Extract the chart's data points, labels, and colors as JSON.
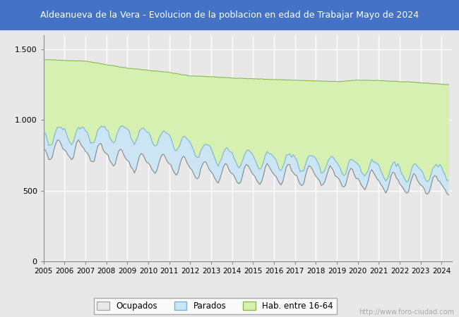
{
  "title": "Aldeanueva de la Vera - Evolucion de la poblacion en edad de Trabajar Mayo de 2024",
  "title_bg_color": "#4472c4",
  "title_text_color": "#ffffff",
  "ylim": [
    0,
    1600
  ],
  "yticks": [
    0,
    500,
    1000,
    1500
  ],
  "yticklabels": [
    "0",
    "500",
    "1.000",
    "1.500"
  ],
  "color_hab_fill": "#d6f0b2",
  "color_hab_line": "#8ab84a",
  "color_parados_fill": "#cce5f5",
  "color_parados_line": "#7ab4d4",
  "color_ocupados_line": "#888888",
  "watermark": "http://www.foro-ciudad.com",
  "legend_labels": [
    "Ocupados",
    "Parados",
    "Hab. entre 16-64"
  ],
  "legend_colors_fill": [
    "#e8e8e8",
    "#cce5f5",
    "#d6f0b2"
  ],
  "legend_colors_edge": [
    "#aaaaaa",
    "#7ab4d4",
    "#8ab84a"
  ],
  "background_color": "#e8e8e8",
  "plot_bg_color": "#e8e8e8",
  "grid_color": "#ffffff",
  "year_labels": [
    "2005",
    "2006",
    "2007",
    "2008",
    "2009",
    "2010",
    "2011",
    "2012",
    "2013",
    "2014",
    "2015",
    "2016",
    "2017",
    "2018",
    "2019",
    "2020",
    "2021",
    "2022",
    "2023",
    "2024"
  ],
  "hab_anchors_x": [
    2005,
    2006,
    2007,
    2008,
    2009,
    2010,
    2011,
    2012,
    2013,
    2014,
    2015,
    2016,
    2017,
    2018,
    2019,
    2020,
    2021,
    2022,
    2023,
    2024.42
  ],
  "hab_anchors_y": [
    1425,
    1420,
    1415,
    1390,
    1365,
    1350,
    1335,
    1310,
    1305,
    1295,
    1290,
    1285,
    1280,
    1275,
    1270,
    1280,
    1278,
    1270,
    1262,
    1248
  ],
  "parados_anchors_x": [
    2005,
    2006,
    2007,
    2008,
    2009,
    2010,
    2011,
    2012,
    2013,
    2014,
    2015,
    2016,
    2017,
    2018,
    2019,
    2020,
    2021,
    2022,
    2023,
    2024.42
  ],
  "parados_anchors_y": [
    100,
    110,
    120,
    150,
    200,
    200,
    175,
    155,
    135,
    120,
    110,
    100,
    95,
    90,
    85,
    90,
    85,
    85,
    85,
    100
  ],
  "ocupados_anchors_x": [
    2005,
    2006,
    2007,
    2008,
    2009,
    2010,
    2011,
    2012,
    2013,
    2014,
    2015,
    2016,
    2017,
    2018,
    2019,
    2020,
    2021,
    2022,
    2023,
    2024.42
  ],
  "ocupados_anchors_y": [
    790,
    790,
    780,
    760,
    710,
    690,
    690,
    660,
    630,
    620,
    615,
    615,
    610,
    605,
    600,
    580,
    565,
    555,
    545,
    540
  ]
}
